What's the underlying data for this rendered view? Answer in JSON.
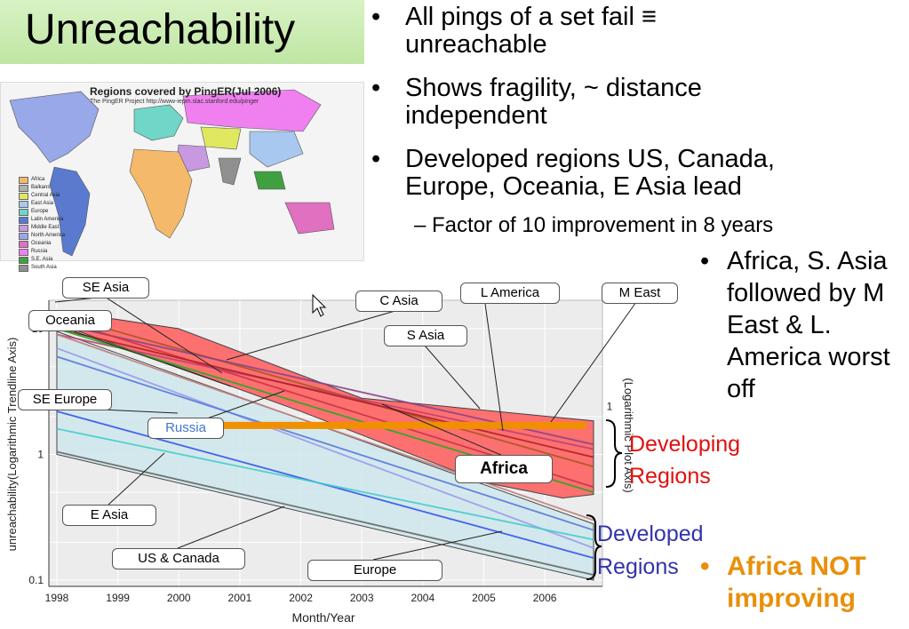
{
  "slide": {
    "title": "Unreachability",
    "bullets": [
      "All pings of a set fail ≡ unreachable",
      "Shows fragility, ~ distance independent",
      "Developed regions US, Canada, Europe, Oceania, E Asia lead"
    ],
    "sub_bullet": "– Factor of 10 improvement in 8 years",
    "right_bullet": "Africa, S. Asia followed by M East & L. America worst off",
    "africa_bullet": "Africa NOT improving",
    "bullet_glyph": "•",
    "developing_label": [
      "Developing",
      "Regions"
    ],
    "developed_label": [
      "Developed",
      "Regions"
    ],
    "colors": {
      "developing": "#e01010",
      "developed": "#3333aa",
      "africa_note": "#e8900a",
      "title_bg": "#c8ecb0"
    }
  },
  "map": {
    "title": "Regions covered by PingER(Jul 2006)",
    "subtitle": "The PingER Project http://www-iepm.slac.stanford.edu/pinger",
    "legend": [
      {
        "name": "Africa",
        "color": "#f5b96b"
      },
      {
        "name": "Balkans",
        "color": "#b0b0b0"
      },
      {
        "name": "Central Asia",
        "color": "#e0e860"
      },
      {
        "name": "East Asia",
        "color": "#a8c8f0"
      },
      {
        "name": "Europe",
        "color": "#6fd6c8"
      },
      {
        "name": "Latin America",
        "color": "#5a7ad0"
      },
      {
        "name": "Middle East",
        "color": "#c898e0"
      },
      {
        "name": "North America",
        "color": "#98a8e8"
      },
      {
        "name": "Oceania",
        "color": "#e070c0"
      },
      {
        "name": "Russia",
        "color": "#f080f0"
      },
      {
        "name": "S.E. Asia",
        "color": "#40a040"
      },
      {
        "name": "South Asia",
        "color": "#909090"
      }
    ]
  },
  "chart_data": {
    "type": "line",
    "xlabel": "Month/Year",
    "ylabel": "unreachability(Logarithmic Trendline Axis)",
    "y2label": "(Logarithmic Plot Axis)",
    "yscale": "log",
    "ylim": [
      0.1,
      10
    ],
    "xlim": [
      1998,
      2006.8
    ],
    "x_ticks": [
      "1998",
      "1999",
      "2000",
      "2001",
      "2002",
      "2003",
      "2004",
      "2005",
      "2006"
    ],
    "y_ticks": [
      "0.1",
      "1",
      "10"
    ],
    "y2_ticks": [
      "1"
    ],
    "series": [
      {
        "name": "SE Asia",
        "color": "#aa5522",
        "x": [
          1998,
          2006.8
        ],
        "y": [
          13,
          0.8
        ]
      },
      {
        "name": "C Asia",
        "color": "#884488",
        "x": [
          1998,
          2006.8
        ],
        "y": [
          11,
          1.2
        ]
      },
      {
        "name": "S Asia",
        "color": "#cc3344",
        "x": [
          1998,
          2006.8
        ],
        "y": [
          12,
          0.55
        ]
      },
      {
        "name": "L America",
        "color": "#c04070",
        "x": [
          1998,
          2006.8
        ],
        "y": [
          9,
          1.1
        ]
      },
      {
        "name": "M East",
        "color": "#b02020",
        "x": [
          1998,
          2006.8
        ],
        "y": [
          10,
          0.95
        ]
      },
      {
        "name": "Oceania",
        "color": "#c08080",
        "x": [
          1998,
          2006.8
        ],
        "y": [
          9,
          0.3
        ]
      },
      {
        "name": "SE Europe",
        "color": "#9999ee",
        "x": [
          1998,
          2006.8
        ],
        "y": [
          7,
          0.18
        ]
      },
      {
        "name": "Russia",
        "color": "#5577dd",
        "x": [
          1998,
          2006.8
        ],
        "y": [
          6,
          0.25
        ]
      },
      {
        "name": "Africa",
        "color": "#22aa22",
        "x": [
          1998,
          2006.8
        ],
        "y": [
          10,
          0.5
        ]
      },
      {
        "name": "E Asia",
        "color": "#3355ee",
        "x": [
          1998,
          2006.8
        ],
        "y": [
          2.2,
          0.15
        ]
      },
      {
        "name": "US & Canada",
        "color": "#666666",
        "x": [
          1998,
          2006.8
        ],
        "y": [
          1.05,
          0.11
        ]
      },
      {
        "name": "Europe",
        "color": "#44cccc",
        "x": [
          1998,
          2006.8
        ],
        "y": [
          1.6,
          0.21
        ]
      }
    ],
    "bands": [
      {
        "name": "Developing Regions",
        "color": "#ff5a5a"
      },
      {
        "name": "Developed Regions",
        "color": "#cfe8ec"
      }
    ],
    "reference_line": {
      "y": 1.7,
      "color": "#f09000"
    }
  }
}
